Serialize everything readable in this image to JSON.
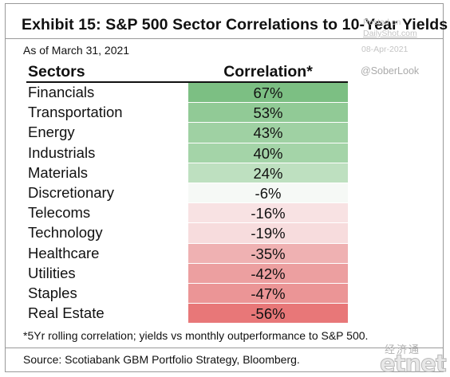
{
  "title": "Exhibit 15: S&P 500 Sector Correlations to 10-Year Yields",
  "as_of": "As of March 31, 2021",
  "watermark": {
    "posted_on": "Posted on",
    "site": "DailyShot.com",
    "date": "08-Apr-2021",
    "handle": "@SoberLook"
  },
  "table": {
    "header_sectors": "Sectors",
    "header_correlation": "Correlation*",
    "rows": [
      {
        "sector": "Financials",
        "value": "67%",
        "color": "#7cbf83"
      },
      {
        "sector": "Transportation",
        "value": "53%",
        "color": "#91ca96"
      },
      {
        "sector": "Energy",
        "value": "43%",
        "color": "#9fd1a3"
      },
      {
        "sector": "Industrials",
        "value": "40%",
        "color": "#a4d4a8"
      },
      {
        "sector": "Materials",
        "value": "24%",
        "color": "#bee0c0"
      },
      {
        "sector": "Discretionary",
        "value": "-6%",
        "color": "#f6f9f6"
      },
      {
        "sector": "Telecoms",
        "value": "-16%",
        "color": "#f8e2e3"
      },
      {
        "sector": "Technology",
        "value": "-19%",
        "color": "#f7dcdd"
      },
      {
        "sector": "Healthcare",
        "value": "-35%",
        "color": "#efb1b2"
      },
      {
        "sector": "Utilities",
        "value": "-42%",
        "color": "#ec9fa0"
      },
      {
        "sector": "Staples",
        "value": "-47%",
        "color": "#eb9596"
      },
      {
        "sector": "Real Estate",
        "value": "-56%",
        "color": "#e87778"
      }
    ]
  },
  "footnote": "*5Yr rolling correlation; yields vs monthly outperformance to S&P 500.",
  "source": "Source: Scotiabank GBM Portfolio Strategy, Bloomberg.",
  "logo": {
    "chinese": "经济通",
    "text": "etnet"
  }
}
